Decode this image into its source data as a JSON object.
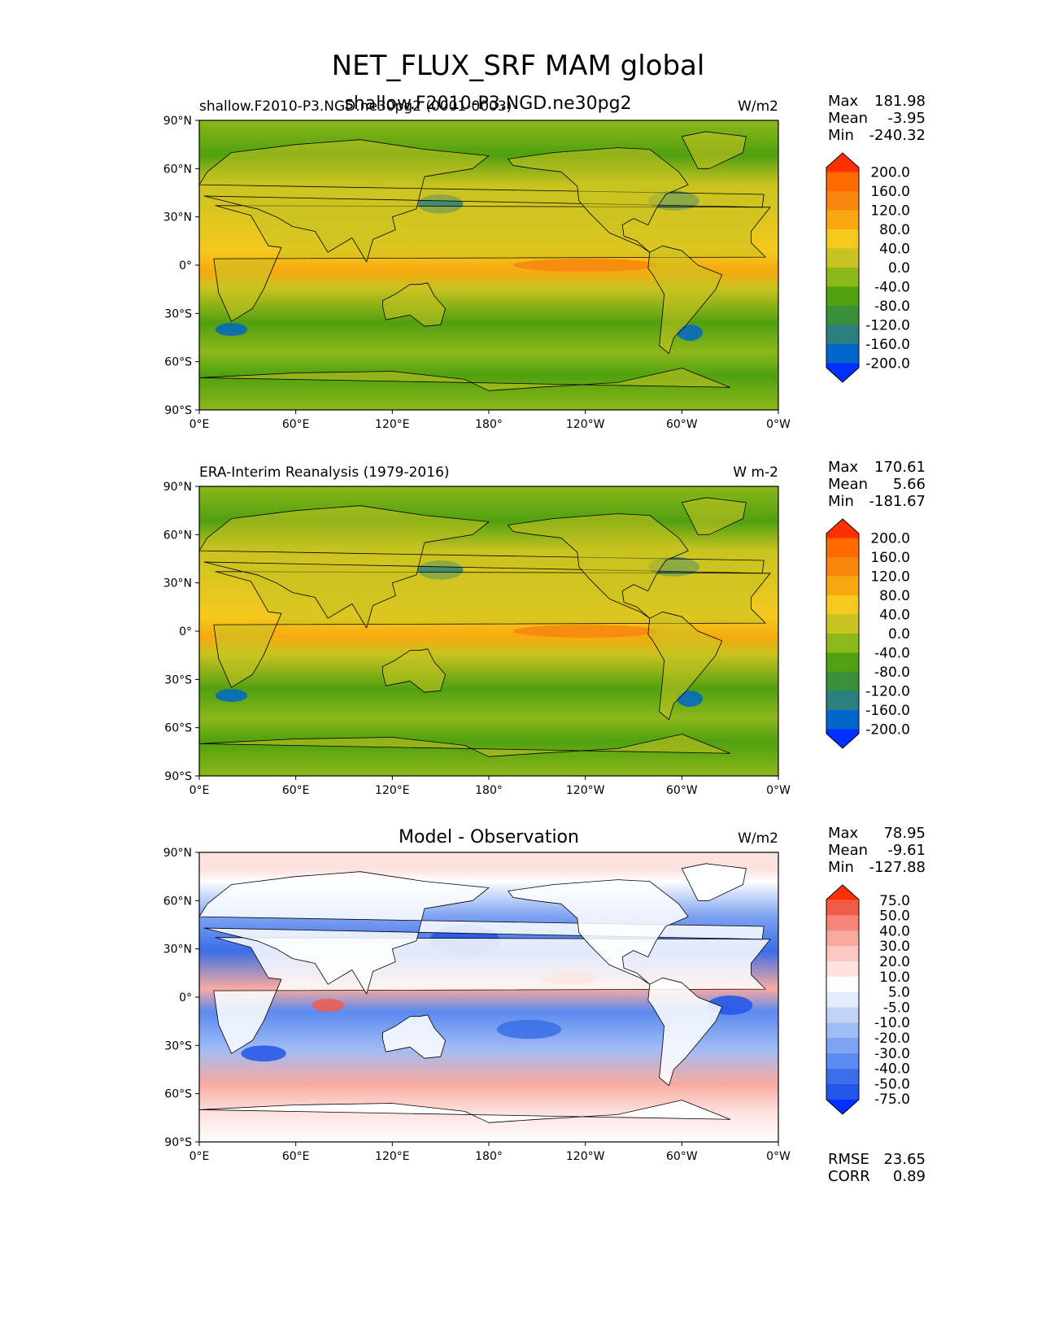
{
  "figure": {
    "title": "NET_FLUX_SRF MAM global",
    "overlap_title": "shallow.F2010-P3.NGD.ne30pg2"
  },
  "chart_data": [
    {
      "type": "heatmap",
      "id": "model",
      "left_label": "shallow.F2010-P3.NGD.ne30pg2 (0001-0003)",
      "center_title": "",
      "units": "W/m2",
      "stats": [
        [
          "Max",
          "181.98"
        ],
        [
          "Mean",
          "-3.95"
        ],
        [
          "Min",
          "-240.32"
        ]
      ],
      "lat_ticks": [
        "90°N",
        "60°N",
        "30°N",
        "0°",
        "30°S",
        "60°S",
        "90°S"
      ],
      "lon_ticks": [
        "0°E",
        "60°E",
        "120°E",
        "180°",
        "120°W",
        "60°W",
        "0°W"
      ],
      "colorbar": {
        "colors": [
          "#0030ff",
          "#0066c8",
          "#2a7f7f",
          "#3a8f3a",
          "#50a010",
          "#8cb819",
          "#c8c320",
          "#f5c91e",
          "#f7a90f",
          "#f7860f",
          "#ff6a00",
          "#ff3000"
        ],
        "labels": [
          "-200.0",
          "-160.0",
          "-120.0",
          "-80.0",
          "-40.0",
          "0.0",
          "40.0",
          "80.0",
          "120.0",
          "160.0",
          "200.0"
        ]
      },
      "bottom_stats": []
    },
    {
      "type": "heatmap",
      "id": "obs",
      "left_label": "ERA-Interim Reanalysis (1979-2016)",
      "center_title": "",
      "units": "W m-2",
      "stats": [
        [
          "Max",
          "170.61"
        ],
        [
          "Mean",
          "5.66"
        ],
        [
          "Min",
          "-181.67"
        ]
      ],
      "lat_ticks": [
        "90°N",
        "60°N",
        "30°N",
        "0°",
        "30°S",
        "60°S",
        "90°S"
      ],
      "lon_ticks": [
        "0°E",
        "60°E",
        "120°E",
        "180°",
        "120°W",
        "60°W",
        "0°W"
      ],
      "colorbar": {
        "colors": [
          "#0030ff",
          "#0066c8",
          "#2a7f7f",
          "#3a8f3a",
          "#50a010",
          "#8cb819",
          "#c8c320",
          "#f5c91e",
          "#f7a90f",
          "#f7860f",
          "#ff6a00",
          "#ff3000"
        ],
        "labels": [
          "-200.0",
          "-160.0",
          "-120.0",
          "-80.0",
          "-40.0",
          "0.0",
          "40.0",
          "80.0",
          "120.0",
          "160.0",
          "200.0"
        ]
      },
      "bottom_stats": []
    },
    {
      "type": "heatmap",
      "id": "diff",
      "left_label": "",
      "center_title": "Model - Observation",
      "units": "W/m2",
      "stats": [
        [
          "Max",
          "78.95"
        ],
        [
          "Mean",
          "-9.61"
        ],
        [
          "Min",
          "-127.88"
        ]
      ],
      "lat_ticks": [
        "90°N",
        "60°N",
        "30°N",
        "0°",
        "30°S",
        "60°S",
        "90°S"
      ],
      "lon_ticks": [
        "0°E",
        "60°E",
        "120°E",
        "180°",
        "120°W",
        "60°W",
        "0°W"
      ],
      "colorbar": {
        "colors": [
          "#0030ff",
          "#2255e8",
          "#3a6ee8",
          "#5b8af0",
          "#7ea3f2",
          "#a0bcf5",
          "#c3d3f8",
          "#e3ebfc",
          "#ffffff",
          "#fde2e0",
          "#fcc9c2",
          "#f9aa9f",
          "#f6857a",
          "#f25a4a",
          "#ff3000"
        ],
        "labels": [
          "-75.0",
          "-50.0",
          "-40.0",
          "-30.0",
          "-20.0",
          "-10.0",
          "-5.0",
          "5.0",
          "10.0",
          "20.0",
          "30.0",
          "40.0",
          "50.0",
          "75.0"
        ]
      },
      "bottom_stats": [
        [
          "RMSE",
          "23.65"
        ],
        [
          "CORR",
          "0.89"
        ]
      ]
    }
  ]
}
